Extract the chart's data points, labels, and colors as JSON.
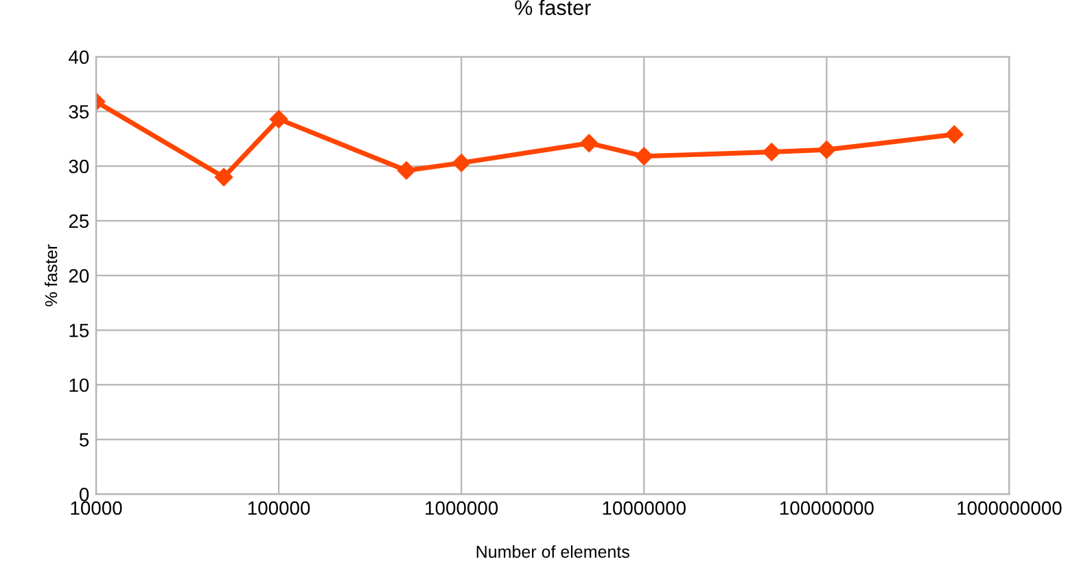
{
  "chart_data": {
    "type": "line",
    "title": "% faster",
    "xlabel": "Number of elements",
    "ylabel": "% faster",
    "log": "x",
    "x": [
      10000,
      50000,
      100000,
      500000,
      1000000,
      5000000,
      10000000,
      50000000,
      100000000,
      500000000
    ],
    "series": [
      {
        "color": "#ff4500",
        "values": [
          35.9,
          29.0,
          34.3,
          29.6,
          30.3,
          32.1,
          30.9,
          31.3,
          31.5,
          32.9
        ]
      }
    ],
    "xlim": [
      10000,
      1000000000
    ],
    "xticks": [
      10000,
      100000,
      1000000,
      10000000,
      100000000,
      1000000000
    ],
    "ylim": [
      0,
      40
    ],
    "yticks": [
      0,
      5,
      10,
      15,
      20,
      25,
      30,
      35,
      40
    ],
    "grid": true,
    "legend": false,
    "marker": "diamond",
    "line_style": "solid"
  }
}
